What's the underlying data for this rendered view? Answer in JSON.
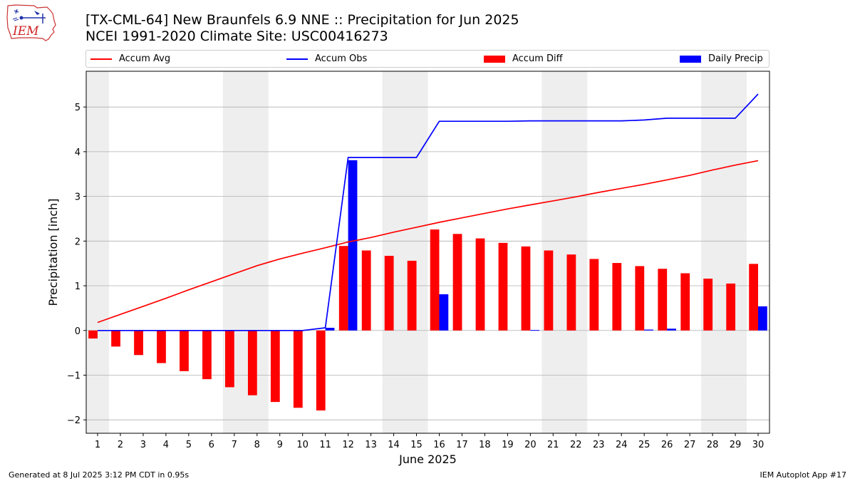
{
  "logo": {
    "text": "IEM"
  },
  "title": {
    "line1": "[TX-CML-64] New Braunfels 6.9 NNE :: Precipitation for Jun 2025",
    "line2": "NCEI 1991-2020 Climate Site: USC00416273"
  },
  "legend": {
    "accum_avg": "Accum Avg",
    "accum_obs": "Accum Obs",
    "accum_diff": "Accum Diff",
    "daily_precip": "Daily Precip"
  },
  "footer": {
    "left": "Generated at 8 Jul 2025 3:12 PM CDT in 0.95s",
    "right": "IEM Autoplot App #17"
  },
  "colors": {
    "accum_avg": "#ff0000",
    "accum_obs": "#0000ff",
    "accum_diff": "#ff0000",
    "daily_precip": "#0000ff",
    "weekend_shade": "#eeeeee",
    "grid": "#b0b0b0"
  },
  "chart_data": {
    "type": "bar",
    "xlabel": "June 2025",
    "ylabel": "Precipitation [inch]",
    "xlim": [
      0.5,
      30.5
    ],
    "ylim": [
      -2.3,
      5.8
    ],
    "yticks": [
      -2,
      -1,
      0,
      1,
      2,
      3,
      4,
      5
    ],
    "yticklabels": [
      "−2",
      "−1",
      "0",
      "1",
      "2",
      "3",
      "4",
      "5"
    ],
    "grid": true,
    "legend_position": "top",
    "weekend_shading": [
      [
        0.5,
        1.5
      ],
      [
        6.5,
        8.5
      ],
      [
        13.5,
        15.5
      ],
      [
        20.5,
        22.5
      ],
      [
        27.5,
        29.5
      ]
    ],
    "x": [
      1,
      2,
      3,
      4,
      5,
      6,
      7,
      8,
      9,
      10,
      11,
      12,
      13,
      14,
      15,
      16,
      17,
      18,
      19,
      20,
      21,
      22,
      23,
      24,
      25,
      26,
      27,
      28,
      29,
      30
    ],
    "series": [
      {
        "name": "Accum Avg",
        "kind": "line",
        "values": [
          0.18,
          0.36,
          0.54,
          0.72,
          0.91,
          1.09,
          1.27,
          1.45,
          1.6,
          1.73,
          1.85,
          1.98,
          2.08,
          2.2,
          2.31,
          2.42,
          2.52,
          2.62,
          2.72,
          2.81,
          2.9,
          2.99,
          3.09,
          3.18,
          3.27,
          3.37,
          3.47,
          3.59,
          3.7,
          3.8
        ]
      },
      {
        "name": "Accum Obs",
        "kind": "line",
        "values": [
          0,
          0,
          0,
          0,
          0,
          0,
          0,
          0,
          0,
          0,
          0.06,
          3.87,
          3.87,
          3.87,
          3.87,
          4.68,
          4.68,
          4.68,
          4.68,
          4.69,
          4.69,
          4.69,
          4.69,
          4.69,
          4.71,
          4.75,
          4.75,
          4.75,
          4.75,
          5.29
        ]
      },
      {
        "name": "Accum Diff",
        "kind": "bar",
        "values": [
          -0.18,
          -0.36,
          -0.55,
          -0.73,
          -0.91,
          -1.09,
          -1.27,
          -1.45,
          -1.6,
          -1.73,
          -1.79,
          1.89,
          1.79,
          1.67,
          1.56,
          2.26,
          2.16,
          2.06,
          1.96,
          1.88,
          1.79,
          1.7,
          1.6,
          1.51,
          1.44,
          1.38,
          1.28,
          1.16,
          1.05,
          1.49
        ]
      },
      {
        "name": "Daily Precip",
        "kind": "bar",
        "values": [
          0,
          0,
          0,
          0,
          0,
          0,
          0,
          0,
          0,
          0,
          0.06,
          3.81,
          0,
          0,
          0,
          0.81,
          0,
          0,
          0,
          0.01,
          0,
          0,
          0,
          0,
          0.02,
          0.04,
          0,
          0,
          0,
          0.54
        ]
      }
    ]
  }
}
